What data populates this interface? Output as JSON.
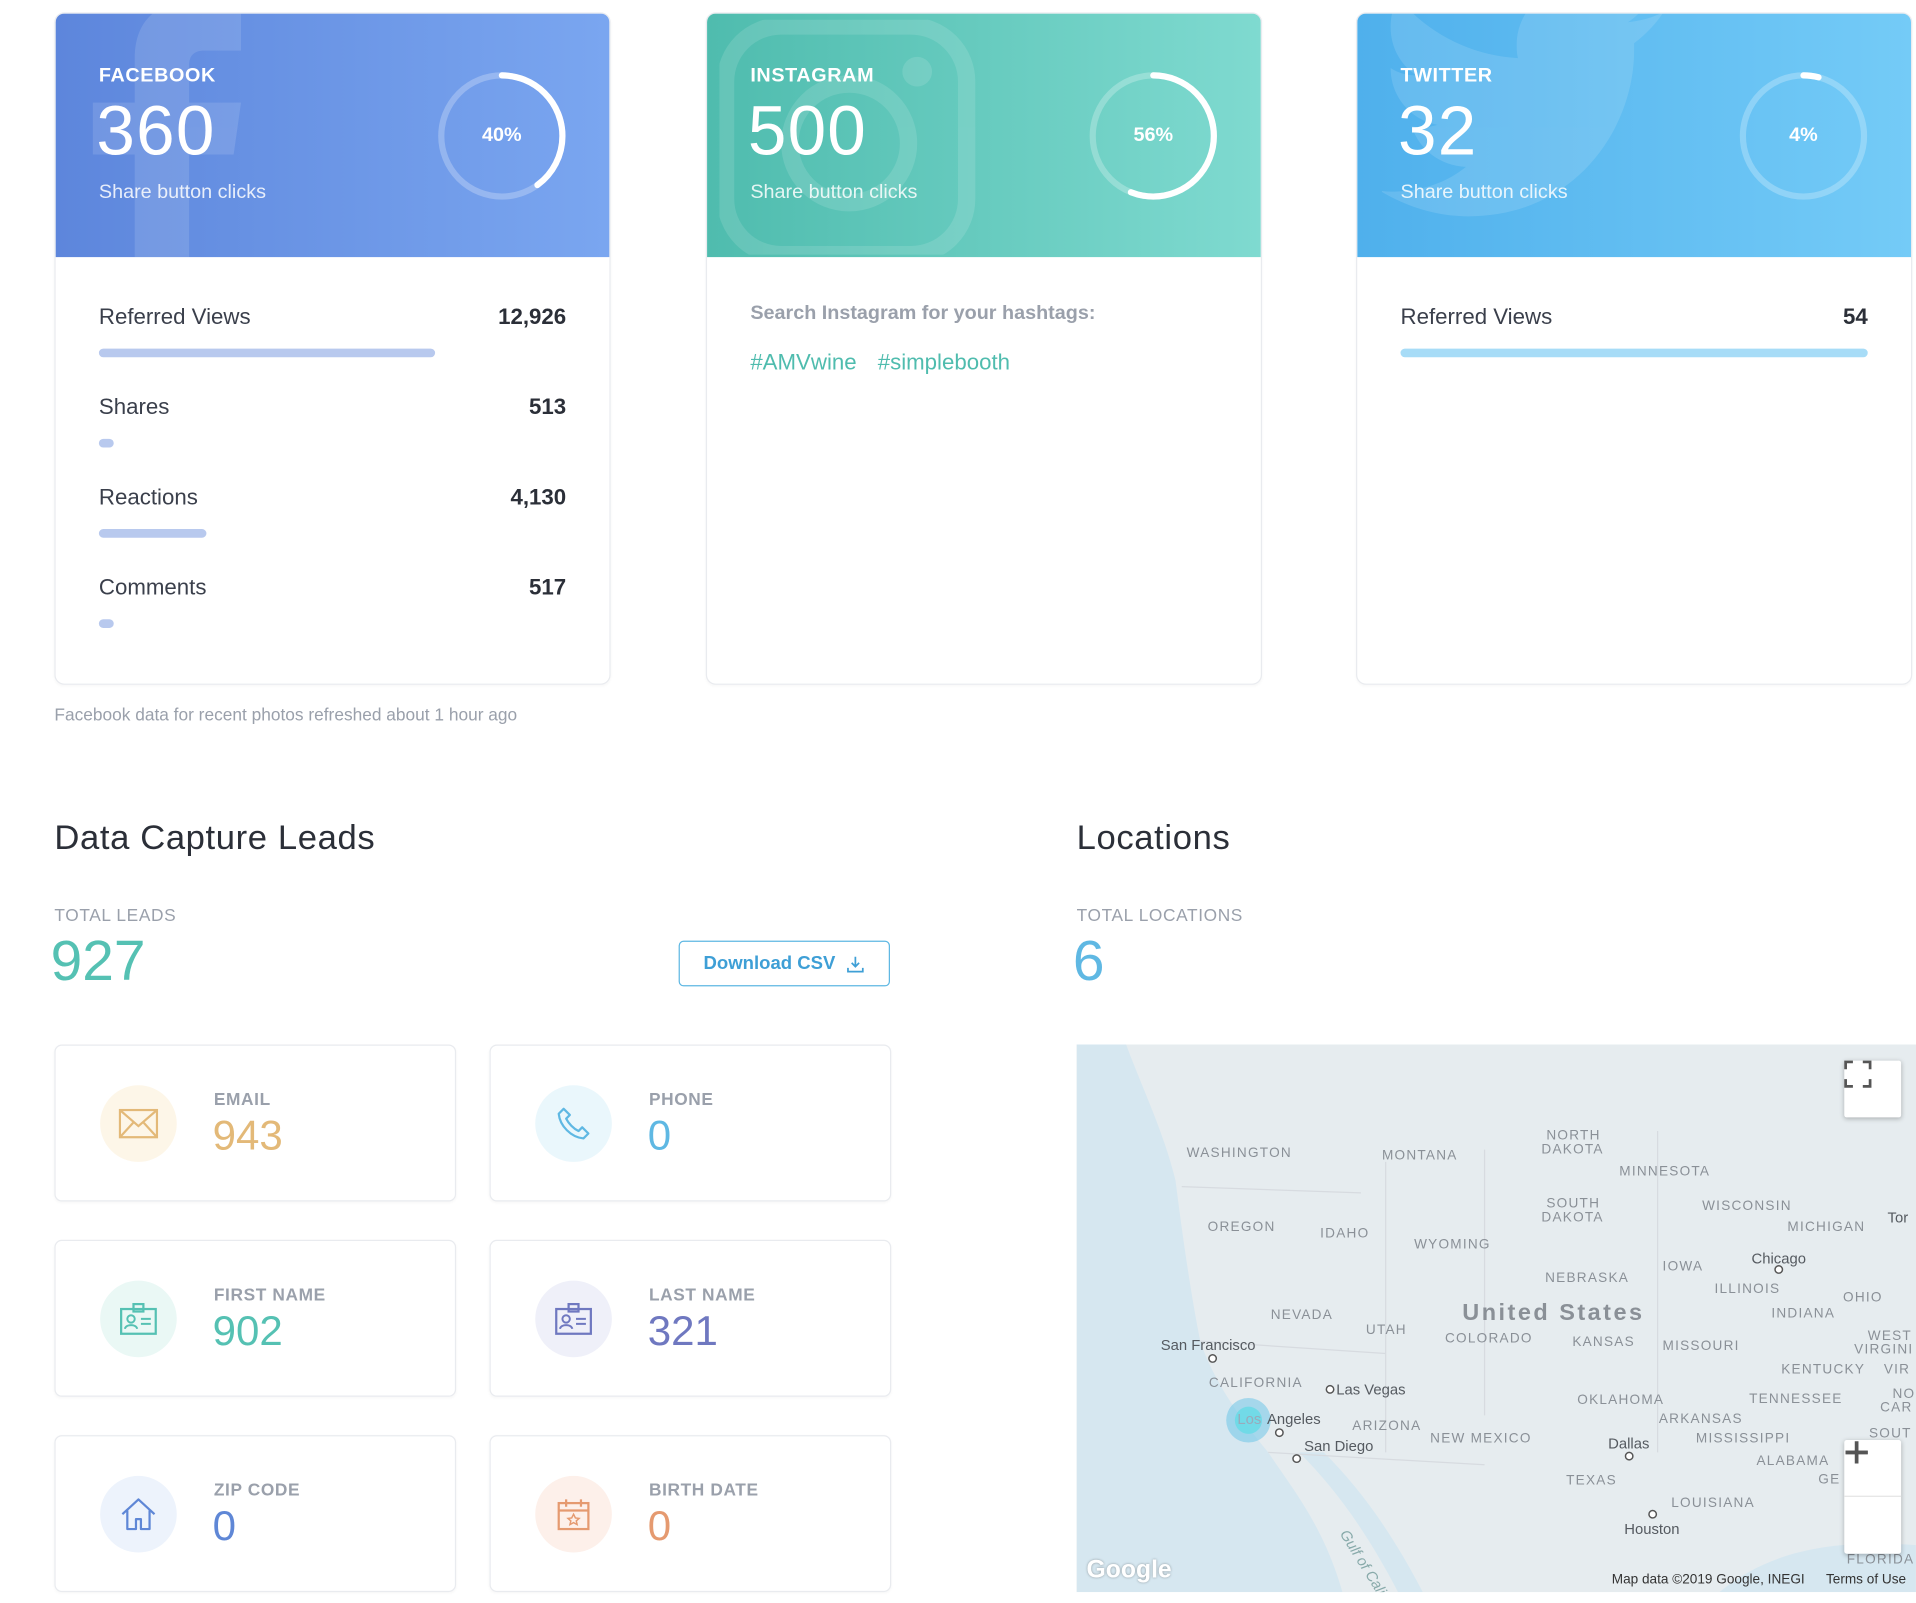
{
  "social": [
    {
      "network": "FACEBOOK",
      "count": "360",
      "subtitle": "Share button clicks",
      "percent_label": "40%",
      "percent": 0.4
    },
    {
      "network": "INSTAGRAM",
      "count": "500",
      "subtitle": "Share button clicks",
      "percent_label": "56%",
      "percent": 0.56
    },
    {
      "network": "TWITTER",
      "count": "32",
      "subtitle": "Share button clicks",
      "percent_label": "4%",
      "percent": 0.04
    }
  ],
  "facebook_metrics": [
    {
      "label": "Referred Views",
      "value": "12,926",
      "fill": 0.72
    },
    {
      "label": "Shares",
      "value": "513",
      "fill": 0.03
    },
    {
      "label": "Reactions",
      "value": "4,130",
      "fill": 0.23
    },
    {
      "label": "Comments",
      "value": "517",
      "fill": 0.03
    }
  ],
  "instagram": {
    "hashtag_title": "Search Instagram for your hashtags:",
    "hashtags": [
      "#AMVwine",
      "#simplebooth"
    ]
  },
  "twitter_metrics": [
    {
      "label": "Referred Views",
      "value": "54",
      "fill": 1.0
    }
  ],
  "facebook_note": "Facebook data for recent photos refreshed about 1 hour ago",
  "leads": {
    "title": "Data Capture Leads",
    "total_label": "TOTAL LEADS",
    "total": "927",
    "download_label": "Download CSV",
    "items": [
      {
        "label": "EMAIL",
        "value": "943",
        "color": "#e3b978"
      },
      {
        "label": "PHONE",
        "value": "0",
        "color": "#5fb8e3"
      },
      {
        "label": "FIRST NAME",
        "value": "902",
        "color": "#55c1b3"
      },
      {
        "label": "LAST NAME",
        "value": "321",
        "color": "#6f78c0"
      },
      {
        "label": "ZIP CODE",
        "value": "0",
        "color": "#5f87d6"
      },
      {
        "label": "BIRTH DATE",
        "value": "0",
        "color": "#e59a70"
      }
    ]
  },
  "locations": {
    "title": "Locations",
    "total_label": "TOTAL LOCATIONS",
    "total": "6",
    "map": {
      "country": "United States",
      "states": [
        "WASHINGTON",
        "MONTANA",
        "NORTH",
        "DAKOTA",
        "MINNESOTA",
        "SOUTH",
        "DAKOTA",
        "WISCONSIN",
        "OREGON",
        "IDAHO",
        "WYOMING",
        "MICHIGAN",
        "IOWA",
        "NEBRASKA",
        "ILLINOIS",
        "OHIO",
        "NEVADA",
        "UTAH",
        "COLORADO",
        "KANSAS",
        "MISSOURI",
        "INDIANA",
        "WEST",
        "VIRGINI",
        "KENTUCKY",
        "VIR",
        "CALIFORNIA",
        "OKLAHOMA",
        "TENNESSEE",
        "NO",
        "CAR",
        "ARIZONA",
        "NEW MEXICO",
        "ARKANSAS",
        "MISSISSIPPI",
        "SOUT",
        "ALABAMA",
        "GE",
        "TEXAS",
        "LOUISIANA",
        "FLORIDA"
      ],
      "cities": [
        "San Francisco",
        "Las Vegas",
        "Los",
        "Angeles",
        "San Diego",
        "Chicago",
        "Dallas",
        "Houston",
        "Tor"
      ],
      "water": "Gulf of Califo",
      "attribution": "Map data ©2019 Google, INEGI",
      "terms": "Terms of Use",
      "logo": "Google"
    }
  }
}
